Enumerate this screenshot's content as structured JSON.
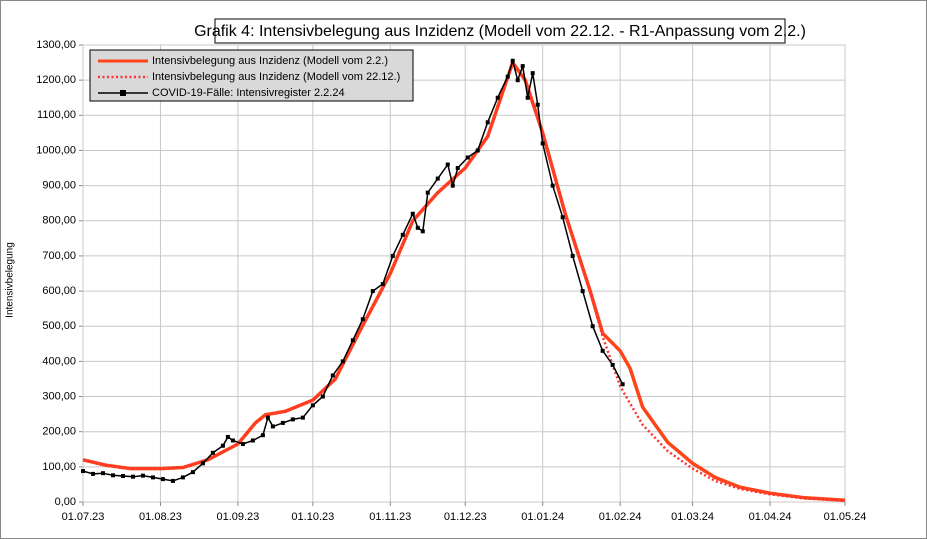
{
  "chart_data": {
    "type": "line",
    "title": "Grafik 4: Intensivbelegung  aus Inzidenz (Modell vom 22.12. - R1-Anpassung vom 2.2.)",
    "y_label": "Intensivbelegung",
    "xlim": [
      "01.07.23",
      "01.05.24"
    ],
    "xticks": [
      "01.07.23",
      "01.08.23",
      "01.09.23",
      "01.10.23",
      "01.11.23",
      "01.12.23",
      "01.01.24",
      "01.02.24",
      "01.03.24",
      "01.04.24",
      "01.05.24"
    ],
    "ylim": [
      0,
      1300
    ],
    "yticks": [
      {
        "value": 0,
        "label": "0,00"
      },
      {
        "value": 100,
        "label": "100,00"
      },
      {
        "value": 200,
        "label": "200,00"
      },
      {
        "value": 300,
        "label": "300,00"
      },
      {
        "value": 400,
        "label": "400,00"
      },
      {
        "value": 500,
        "label": "500,00"
      },
      {
        "value": 600,
        "label": "600,00"
      },
      {
        "value": 700,
        "label": "700,00"
      },
      {
        "value": 800,
        "label": "800,00"
      },
      {
        "value": 900,
        "label": "900,00"
      },
      {
        "value": 1000,
        "label": "1000,00"
      },
      {
        "value": 1100,
        "label": "1100,00"
      },
      {
        "value": 1200,
        "label": "1200,00"
      },
      {
        "value": 1300,
        "label": "1300,00"
      }
    ],
    "grid": true,
    "legend": "top-left",
    "series": [
      {
        "name": "Intensivbelegung aus Inzidenz (Modell vom 2.2.)",
        "color": "#ff4419",
        "style": "solid",
        "x": [
          "01.07.23",
          "10.07.23",
          "20.07.23",
          "01.08.23",
          "10.08.23",
          "20.08.23",
          "01.09.23",
          "08.09.23",
          "12.09.23",
          "20.09.23",
          "01.10.23",
          "10.10.23",
          "20.10.23",
          "01.11.23",
          "10.11.23",
          "20.11.23",
          "01.12.23",
          "10.12.23",
          "20.12.23",
          "25.12.23",
          "01.01.24",
          "10.01.24",
          "20.01.24",
          "25.01.24",
          "01.02.24",
          "05.02.24",
          "10.02.24",
          "20.02.24",
          "01.03.24",
          "10.03.24",
          "20.03.24",
          "01.04.24",
          "15.04.24",
          "01.05.24"
        ],
        "values": [
          120,
          105,
          95,
          95,
          98,
          120,
          165,
          225,
          248,
          258,
          290,
          350,
          489,
          650,
          800,
          880,
          950,
          1040,
          1250,
          1200,
          1050,
          820,
          600,
          480,
          430,
          380,
          270,
          170,
          110,
          70,
          42,
          25,
          12,
          5
        ]
      },
      {
        "name": "Intensivbelegung aus Inzidenz (Modell vom 22.12.)",
        "color": "#ff3333",
        "style": "dotted",
        "x": [
          "01.07.23",
          "10.07.23",
          "20.07.23",
          "01.08.23",
          "10.08.23",
          "20.08.23",
          "01.09.23",
          "08.09.23",
          "12.09.23",
          "20.09.23",
          "01.10.23",
          "10.10.23",
          "20.10.23",
          "01.11.23",
          "10.11.23",
          "20.11.23",
          "01.12.23",
          "10.12.23",
          "20.12.23",
          "25.12.23",
          "01.01.24",
          "10.01.24",
          "20.01.24",
          "25.01.24",
          "01.02.24",
          "05.02.24",
          "10.02.24",
          "20.02.24",
          "01.03.24",
          "10.03.24",
          "20.03.24",
          "01.04.24",
          "15.04.24",
          "01.05.24"
        ],
        "values": [
          120,
          105,
          95,
          95,
          98,
          120,
          165,
          225,
          248,
          258,
          290,
          350,
          489,
          650,
          800,
          880,
          950,
          1040,
          1250,
          1200,
          1050,
          820,
          600,
          470,
          330,
          280,
          220,
          145,
          95,
          60,
          37,
          22,
          10,
          4
        ]
      },
      {
        "name": "COVID-19-Fälle: Intensivregister 2.2.24",
        "color": "#000000",
        "style": "markers",
        "x": [
          "01.07.23",
          "05.07.23",
          "09.07.23",
          "13.07.23",
          "17.07.23",
          "21.07.23",
          "25.07.23",
          "29.07.23",
          "02.08.23",
          "06.08.23",
          "10.08.23",
          "14.08.23",
          "18.08.23",
          "22.08.23",
          "26.08.23",
          "28.08.23",
          "30.08.23",
          "03.09.23",
          "07.09.23",
          "11.09.23",
          "13.09.23",
          "15.09.23",
          "19.09.23",
          "23.09.23",
          "27.09.23",
          "01.10.23",
          "05.10.23",
          "09.10.23",
          "13.10.23",
          "17.10.23",
          "21.10.23",
          "25.10.23",
          "29.10.23",
          "02.11.23",
          "06.11.23",
          "10.11.23",
          "12.11.23",
          "14.11.23",
          "16.11.23",
          "20.11.23",
          "24.11.23",
          "26.11.23",
          "28.11.23",
          "02.12.23",
          "06.12.23",
          "10.12.23",
          "14.12.23",
          "18.12.23",
          "20.12.23",
          "22.12.23",
          "24.12.23",
          "26.12.23",
          "28.12.23",
          "30.12.23",
          "01.01.24",
          "05.01.24",
          "09.01.24",
          "13.01.24",
          "17.01.24",
          "21.01.24",
          "25.01.24",
          "29.01.24",
          "02.02.24"
        ],
        "values": [
          88,
          80,
          82,
          76,
          74,
          72,
          75,
          70,
          65,
          60,
          70,
          85,
          110,
          140,
          160,
          185,
          175,
          165,
          175,
          190,
          240,
          215,
          225,
          235,
          240,
          275,
          300,
          360,
          400,
          460,
          520,
          600,
          620,
          700,
          760,
          820,
          780,
          770,
          880,
          920,
          960,
          900,
          950,
          980,
          1000,
          1080,
          1150,
          1210,
          1255,
          1200,
          1240,
          1150,
          1220,
          1130,
          1020,
          900,
          810,
          700,
          600,
          500,
          430,
          390,
          335
        ]
      }
    ]
  }
}
